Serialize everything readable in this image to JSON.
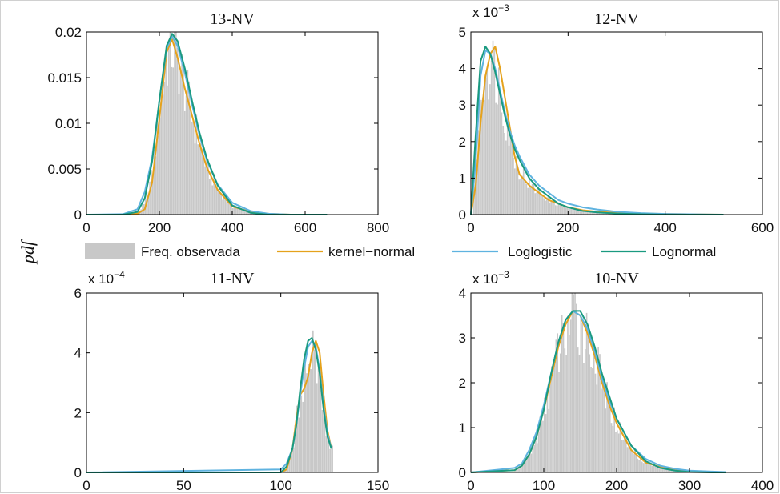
{
  "figure": {
    "ylabel": "pdf",
    "legend": {
      "placement": "between-rows",
      "entries": [
        {
          "label": "Freq. observada",
          "color": "#c8c8c8",
          "kind": "patch"
        },
        {
          "label": "kernel−normal",
          "color": "#e5a21c",
          "kind": "line"
        },
        {
          "label": "Loglogistic",
          "color": "#5fb3e0",
          "kind": "line"
        },
        {
          "label": "Lognormal",
          "color": "#1a9a80",
          "kind": "line"
        }
      ]
    }
  },
  "chart_data": [
    {
      "type": "area",
      "title": "13-NV",
      "xlim": [
        0,
        800
      ],
      "ylim": [
        0,
        0.02
      ],
      "xticks": [
        "0",
        "200",
        "400",
        "600",
        "800"
      ],
      "yticks": [
        "0",
        "0.005",
        "0.01",
        "0.015",
        "0.02"
      ],
      "exponent": "",
      "hist": {
        "range": [
          80,
          660
        ],
        "bin": 4
      },
      "series": [
        {
          "name": "kernel−normal",
          "x": [
            0,
            100,
            140,
            160,
            180,
            200,
            220,
            235,
            250,
            270,
            290,
            310,
            330,
            360,
            400,
            450,
            500,
            560,
            620,
            660
          ],
          "y": [
            0,
            0,
            0.0001,
            0.0006,
            0.0035,
            0.0105,
            0.0178,
            0.0192,
            0.0172,
            0.0138,
            0.0108,
            0.0078,
            0.0052,
            0.0027,
            0.0009,
            0.0003,
            0.0001,
            0,
            0,
            0
          ]
        },
        {
          "name": "Loglogistic",
          "x": [
            0,
            100,
            140,
            160,
            180,
            200,
            220,
            235,
            250,
            270,
            290,
            310,
            330,
            360,
            400,
            450,
            500,
            560,
            620,
            660
          ],
          "y": [
            0,
            5e-05,
            0.0006,
            0.0025,
            0.0062,
            0.0125,
            0.0182,
            0.0195,
            0.0185,
            0.0155,
            0.012,
            0.0087,
            0.006,
            0.0033,
            0.0013,
            0.0004,
            0.0001,
            0,
            0,
            0
          ]
        },
        {
          "name": "Lognormal",
          "x": [
            0,
            100,
            140,
            160,
            180,
            200,
            220,
            235,
            250,
            270,
            290,
            310,
            330,
            360,
            400,
            450,
            500,
            560,
            620,
            660
          ],
          "y": [
            0,
            0,
            0.0003,
            0.0018,
            0.0058,
            0.0125,
            0.0185,
            0.0198,
            0.019,
            0.016,
            0.0124,
            0.009,
            0.0062,
            0.0032,
            0.001,
            0.0002,
            0,
            0,
            0,
            0
          ]
        }
      ]
    },
    {
      "type": "area",
      "title": "12-NV",
      "xlim": [
        0,
        600
      ],
      "ylim": [
        0,
        0.005
      ],
      "xticks": [
        "0",
        "200",
        "400",
        "600"
      ],
      "yticks": [
        "0",
        "1",
        "2",
        "3",
        "4",
        "5"
      ],
      "exponent": "−3",
      "hist": {
        "range": [
          5,
          520
        ],
        "bin": 3
      },
      "series": [
        {
          "name": "kernel−normal",
          "x": [
            0,
            10,
            20,
            30,
            40,
            50,
            60,
            70,
            80,
            90,
            100,
            120,
            140,
            160,
            180,
            200,
            230,
            260,
            300,
            350,
            400,
            450,
            520
          ],
          "y": [
            0,
            0.0008,
            0.0025,
            0.0038,
            0.0044,
            0.0046,
            0.004,
            0.0032,
            0.0024,
            0.0016,
            0.0011,
            0.0008,
            0.0006,
            0.0004,
            0.0003,
            0.0002,
            0.00012,
            8e-05,
            5e-05,
            3e-05,
            2e-05,
            1e-05,
            0
          ]
        },
        {
          "name": "Loglogistic",
          "x": [
            0,
            10,
            20,
            30,
            40,
            50,
            60,
            70,
            80,
            90,
            100,
            120,
            140,
            160,
            180,
            200,
            230,
            260,
            300,
            350,
            400,
            450,
            520
          ],
          "y": [
            0,
            0.0015,
            0.0038,
            0.0045,
            0.0044,
            0.004,
            0.0034,
            0.0028,
            0.0023,
            0.0019,
            0.0016,
            0.0011,
            0.0008,
            0.0006,
            0.0004,
            0.0003,
            0.0002,
            0.00014,
            8e-05,
            4e-05,
            2e-05,
            1e-05,
            0
          ]
        },
        {
          "name": "Lognormal",
          "x": [
            0,
            10,
            20,
            30,
            40,
            50,
            60,
            70,
            80,
            90,
            100,
            120,
            140,
            160,
            180,
            200,
            230,
            260,
            300,
            350,
            400,
            450,
            520
          ],
          "y": [
            0,
            0.0022,
            0.0042,
            0.0046,
            0.0044,
            0.0039,
            0.0033,
            0.0027,
            0.0022,
            0.0018,
            0.0015,
            0.001,
            0.0007,
            0.0005,
            0.0003,
            0.0002,
            0.0001,
            6e-05,
            3e-05,
            1e-05,
            0,
            0,
            0
          ]
        }
      ]
    },
    {
      "type": "area",
      "title": "11-NV",
      "xlim": [
        0,
        150
      ],
      "ylim": [
        0,
        0.0006
      ],
      "xticks": [
        "0",
        "50",
        "100",
        "150"
      ],
      "yticks": [
        "0",
        "2",
        "4",
        "6"
      ],
      "exponent": "−4",
      "hist": {
        "range": [
          100,
          127
        ],
        "bin": 1
      },
      "series": [
        {
          "name": "kernel−normal",
          "x": [
            0,
            100,
            103,
            106,
            108,
            110,
            112,
            114,
            116,
            118,
            120,
            122,
            124,
            126
          ],
          "y": [
            0,
            0,
            1e-05,
            8e-05,
            0.00018,
            0.00026,
            0.00028,
            0.00032,
            0.0004,
            0.00044,
            0.0004,
            0.00026,
            0.00014,
            8e-05
          ]
        },
        {
          "name": "Loglogistic",
          "x": [
            0,
            100,
            103,
            106,
            108,
            110,
            112,
            114,
            116,
            118,
            120,
            122,
            124,
            126
          ],
          "y": [
            0,
            1e-05,
            3e-05,
            8e-05,
            0.00016,
            0.00026,
            0.00035,
            0.00042,
            0.00044,
            0.00042,
            0.00034,
            0.00022,
            0.00013,
            8e-05
          ]
        },
        {
          "name": "Lognormal",
          "x": [
            0,
            100,
            103,
            106,
            108,
            110,
            112,
            114,
            116,
            118,
            120,
            122,
            124,
            126
          ],
          "y": [
            0,
            0,
            2e-05,
            8e-05,
            0.00016,
            0.00028,
            0.00038,
            0.00044,
            0.00045,
            0.00041,
            0.00033,
            0.00021,
            0.00012,
            8e-05
          ]
        }
      ]
    },
    {
      "type": "area",
      "title": "10-NV",
      "xlim": [
        0,
        400
      ],
      "ylim": [
        0,
        0.004
      ],
      "xticks": [
        "0",
        "100",
        "200",
        "300",
        "400"
      ],
      "yticks": [
        "0",
        "1",
        "2",
        "3",
        "4"
      ],
      "exponent": "−3",
      "hist": {
        "range": [
          60,
          350
        ],
        "bin": 2
      },
      "series": [
        {
          "name": "kernel−normal",
          "x": [
            0,
            60,
            70,
            80,
            90,
            100,
            110,
            120,
            130,
            140,
            150,
            160,
            170,
            180,
            190,
            200,
            220,
            240,
            260,
            280,
            300,
            330,
            350
          ],
          "y": [
            0,
            5e-05,
            0.00015,
            0.0004,
            0.0008,
            0.0014,
            0.0021,
            0.0028,
            0.0033,
            0.0036,
            0.0035,
            0.0031,
            0.0026,
            0.002,
            0.0015,
            0.0011,
            0.0005,
            0.00022,
            0.00012,
            6e-05,
            3e-05,
            1e-05,
            0
          ]
        },
        {
          "name": "Loglogistic",
          "x": [
            0,
            60,
            70,
            80,
            90,
            100,
            110,
            120,
            130,
            140,
            150,
            160,
            170,
            180,
            190,
            200,
            220,
            240,
            260,
            280,
            300,
            330,
            350
          ],
          "y": [
            0,
            0.0001,
            0.0002,
            0.0005,
            0.0009,
            0.0015,
            0.0022,
            0.0029,
            0.0034,
            0.0036,
            0.0035,
            0.0032,
            0.0027,
            0.0021,
            0.0016,
            0.0012,
            0.0006,
            0.0003,
            0.00015,
            8e-05,
            4e-05,
            2e-05,
            1e-05
          ]
        },
        {
          "name": "Lognormal",
          "x": [
            0,
            60,
            70,
            80,
            90,
            100,
            110,
            120,
            130,
            140,
            150,
            160,
            170,
            180,
            190,
            200,
            220,
            240,
            260,
            280,
            300,
            330,
            350
          ],
          "y": [
            0,
            5e-05,
            0.00015,
            0.0004,
            0.0008,
            0.0014,
            0.0022,
            0.0029,
            0.0034,
            0.0036,
            0.0036,
            0.0033,
            0.0028,
            0.0022,
            0.0017,
            0.0012,
            0.0006,
            0.00025,
            0.0001,
            4e-05,
            1e-05,
            0,
            0
          ]
        }
      ]
    }
  ]
}
